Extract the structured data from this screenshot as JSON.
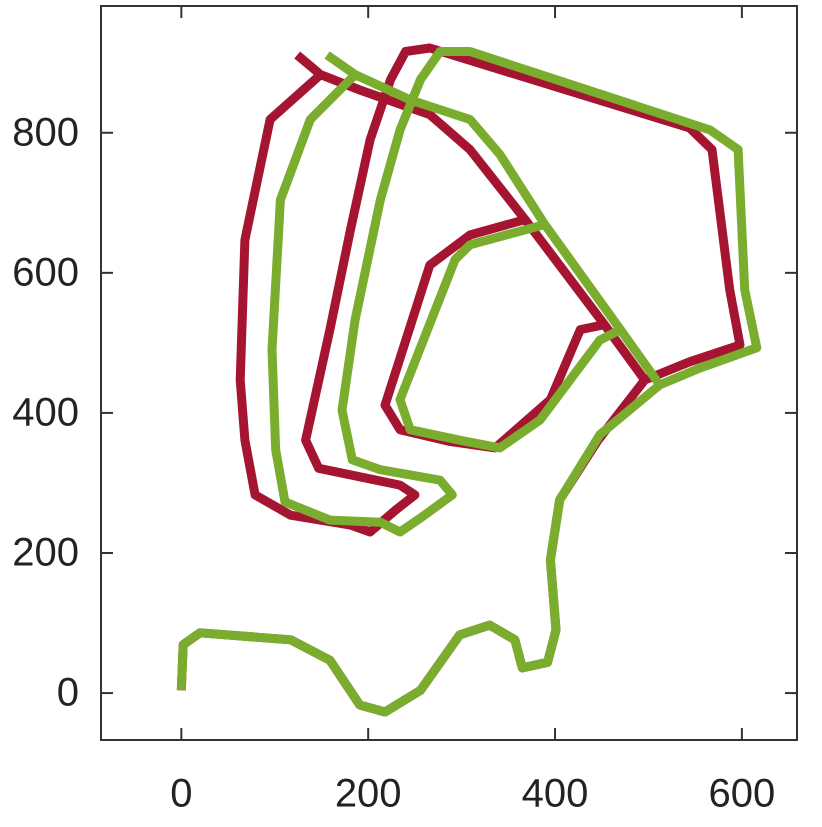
{
  "chart_data": {
    "type": "line",
    "xlim": [
      -86,
      659
    ],
    "ylim": [
      -67,
      981
    ],
    "xticks": [
      0,
      200,
      400,
      600
    ],
    "yticks": [
      0,
      200,
      400,
      600,
      800
    ],
    "series": [
      {
        "color": "#a51431",
        "x": [
          0,
          2,
          20,
          117,
          159,
          191,
          218,
          256,
          298,
          330,
          357,
          365,
          392,
          401,
          395,
          405,
          446,
          496,
          544,
          598,
          587,
          568,
          544,
          266,
          240,
          224,
          202,
          181,
          159,
          133,
          147,
          234,
          250,
          229,
          202,
          181,
          117,
          79,
          68,
          63,
          68,
          95,
          149,
          191,
          266,
          309,
          368,
          309,
          266,
          218,
          234,
          288,
          336,
          395,
          427,
          453,
          496,
          453,
          368,
          309,
          266,
          191,
          149,
          124
        ],
        "values": [
          4,
          69,
          86,
          76,
          47,
          -17,
          -27,
          4,
          83,
          97,
          76,
          36,
          44,
          90,
          190,
          276,
          361,
          447,
          473,
          497,
          576,
          776,
          807,
          921,
          916,
          876,
          790,
          661,
          519,
          361,
          321,
          297,
          283,
          261,
          230,
          240,
          254,
          283,
          361,
          447,
          647,
          819,
          883,
          861,
          826,
          776,
          676,
          654,
          611,
          411,
          376,
          359,
          350,
          419,
          519,
          526,
          447,
          526,
          676,
          776,
          826,
          861,
          883,
          911
        ]
      },
      {
        "color": "#7aad2e",
        "x": [
          0,
          2,
          20,
          117,
          159,
          191,
          218,
          256,
          298,
          330,
          357,
          365,
          392,
          401,
          395,
          405,
          448,
          512,
          555,
          616,
          603,
          596,
          566,
          309,
          277,
          256,
          234,
          213,
          186,
          172,
          183,
          213,
          277,
          290,
          256,
          234,
          213,
          159,
          111,
          101,
          97,
          106,
          138,
          186,
          245,
          309,
          341,
          389,
          309,
          293,
          234,
          245,
          298,
          341,
          384,
          448,
          470,
          512,
          470,
          389,
          341,
          309,
          245,
          186,
          156
        ],
        "values": [
          4,
          69,
          86,
          76,
          47,
          -17,
          -27,
          4,
          83,
          97,
          76,
          36,
          44,
          90,
          190,
          276,
          369,
          440,
          464,
          493,
          576,
          776,
          804,
          916,
          916,
          876,
          804,
          704,
          533,
          404,
          333,
          319,
          304,
          283,
          250,
          230,
          244,
          247,
          273,
          347,
          490,
          704,
          819,
          883,
          847,
          819,
          769,
          669,
          640,
          619,
          419,
          376,
          361,
          350,
          390,
          504,
          519,
          440,
          519,
          669,
          769,
          819,
          847,
          883,
          911
        ]
      }
    ]
  }
}
